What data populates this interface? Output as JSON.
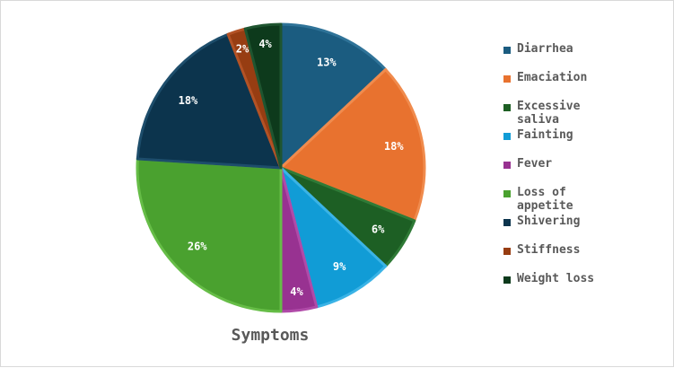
{
  "chart_data": {
    "type": "pie",
    "title": "Symptoms",
    "legend_position": "right",
    "slices": [
      {
        "label": "Diarrhea",
        "value": 13,
        "display": "13%",
        "color": "#1b5c80",
        "edge": "#2f7398"
      },
      {
        "label": "Emaciation",
        "value": 18,
        "display": "18%",
        "color": "#e8722f",
        "edge": "#f08b4d"
      },
      {
        "label": "Excessive saliva",
        "value": 6,
        "display": "6%",
        "color": "#1d5f24",
        "edge": "#2f7a36"
      },
      {
        "label": "Fainting",
        "value": 9,
        "display": "9%",
        "color": "#119cd6",
        "edge": "#3ab3e6"
      },
      {
        "label": "Fever",
        "value": 4,
        "display": "4%",
        "color": "#983291",
        "edge": "#b04aa8"
      },
      {
        "label": "Loss of appetite",
        "value": 26,
        "display": "26%",
        "color": "#4aa12f",
        "edge": "#66bd47"
      },
      {
        "label": "Shivering",
        "value": 18,
        "display": "18%",
        "color": "#0c344d",
        "edge": "#1d4d6b"
      },
      {
        "label": "Stiffness",
        "value": 2,
        "display": "2%",
        "color": "#973d12",
        "edge": "#b35225"
      },
      {
        "label": "Weight loss",
        "value": 4,
        "display": "4%",
        "color": "#0d3a1c",
        "edge": "#1f5530"
      }
    ]
  }
}
